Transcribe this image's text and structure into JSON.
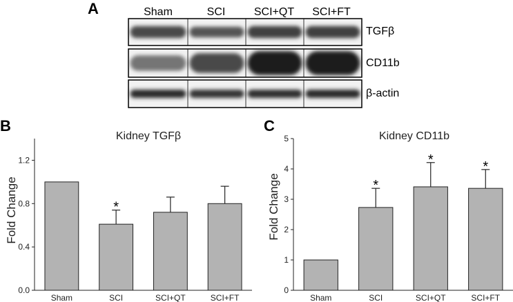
{
  "blot": {
    "panel": "A",
    "lanes": [
      "Sham",
      "SCI",
      "SCI+QT",
      "SCI+FT"
    ],
    "rows": [
      {
        "protein": "TGFβ",
        "intensity": [
          0.75,
          0.7,
          0.8,
          0.8
        ],
        "spread": [
          0.45,
          0.4,
          0.45,
          0.45
        ]
      },
      {
        "protein": "CD11b",
        "intensity": [
          0.55,
          0.75,
          0.95,
          0.95
        ],
        "spread": [
          0.55,
          0.7,
          0.85,
          0.85
        ]
      },
      {
        "protein": "β-actin",
        "intensity": [
          0.9,
          0.85,
          0.88,
          0.9
        ],
        "spread": [
          0.3,
          0.3,
          0.3,
          0.3
        ]
      }
    ]
  },
  "chart_data": [
    {
      "panel": "B",
      "type": "bar",
      "title": "Kidney TGFβ",
      "ylabel": "Fold Change",
      "xlabel": "",
      "categories": [
        "Sham",
        "SCI",
        "SCI+QT",
        "SCI+FT"
      ],
      "values": [
        1.0,
        0.61,
        0.72,
        0.8
      ],
      "errors": [
        0,
        0.13,
        0.14,
        0.16
      ],
      "significant": [
        false,
        true,
        false,
        false
      ],
      "significance_marker": "*",
      "ylim": [
        0,
        1.4
      ],
      "yticks": [
        "0.0",
        "0.4",
        "0.8",
        "1.2"
      ],
      "grid": false,
      "bar_color": "#b3b3b3"
    },
    {
      "panel": "C",
      "type": "bar",
      "title": "Kidney CD11b",
      "ylabel": "Fold Change",
      "xlabel": "",
      "categories": [
        "Sham",
        "SCI",
        "SCI+QT",
        "SCI+FT"
      ],
      "values": [
        1.0,
        2.73,
        3.41,
        3.36
      ],
      "errors": [
        0,
        0.63,
        0.8,
        0.62
      ],
      "significant": [
        false,
        true,
        true,
        true
      ],
      "significance_marker": "*",
      "ylim": [
        0,
        5
      ],
      "yticks": [
        "0",
        "1",
        "2",
        "3",
        "4",
        "5"
      ],
      "grid": false,
      "bar_color": "#b3b3b3"
    }
  ]
}
